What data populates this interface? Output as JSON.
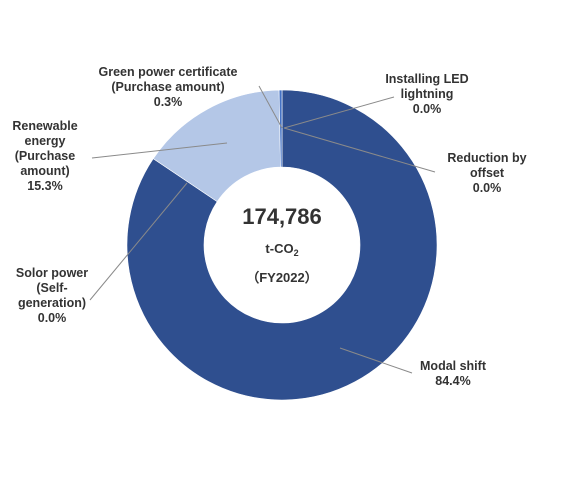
{
  "chart_data": {
    "type": "pie",
    "subtype": "donut",
    "categories": [
      "Installing LED lightning",
      "Reduction by offset",
      "Modal shift",
      "Solor power (Self-generation)",
      "Renewable energy (Purchase amount)",
      "Green power certificate (Purchase amount)"
    ],
    "values": [
      0.0,
      0.0,
      84.4,
      0.0,
      15.3,
      0.3
    ],
    "value_labels": [
      "0.0%",
      "0.0%",
      "84.4%",
      "0.0%",
      "15.3%",
      "0.3%"
    ],
    "colors": [
      "#2f5597",
      "#2f5597",
      "#2f4f8f",
      "#2f4f8f",
      "#b4c7e7",
      "#4472c4"
    ],
    "slices": [
      {
        "label_lines": [
          "Installing LED",
          "lightning"
        ],
        "value": "0.0%"
      },
      {
        "label_lines": [
          "Reduction by",
          "offset"
        ],
        "value": "0.0%"
      },
      {
        "label_lines": [
          "Modal shift"
        ],
        "value": "84.4%"
      },
      {
        "label_lines": [
          "Solor power",
          "(Self-",
          "generation)"
        ],
        "value": "0.0%"
      },
      {
        "label_lines": [
          "Renewable",
          "energy",
          "(Purchase",
          "amount)"
        ],
        "value": "15.3%"
      },
      {
        "label_lines": [
          "Green power certificate",
          "(Purchase amount)"
        ],
        "value": "0.3%"
      }
    ],
    "center": {
      "total": "174,786",
      "unit_base": "t-CO",
      "unit_sub": "2",
      "period": "（FY2022）"
    },
    "legend": "none"
  }
}
